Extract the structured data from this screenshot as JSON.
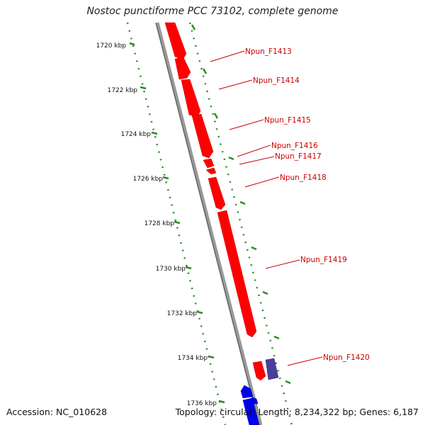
{
  "title": "Nostoc punctiforme PCC 73102, complete genome",
  "footer": {
    "accession": "Accession: NC_010628",
    "summary": "Topology: circular; Length: 8,234,322 bp; Genes: 6,187"
  },
  "colors": {
    "backbone": "#888888",
    "scale_ticks": "#2a8a2a",
    "gene_forward": "#ff0000",
    "gene_other": "#4b3f9a",
    "gene_blue": "#0000ee",
    "label_text": "#cc0000"
  },
  "scale_labels": [
    "1720 kbp",
    "1722 kbp",
    "1724 kbp",
    "1726 kbp",
    "1728 kbp",
    "1730 kbp",
    "1732 kbp",
    "1734 kbp",
    "1736 kbp"
  ],
  "gene_labels": [
    "Npun_F1413",
    "Npun_F1414",
    "Npun_F1415",
    "Npun_F1416",
    "Npun_F1417",
    "Npun_F1418",
    "Npun_F1419",
    "Npun_F1420"
  ]
}
